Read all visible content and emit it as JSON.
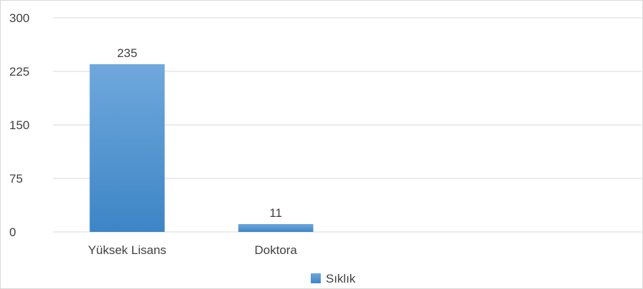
{
  "chart_data": {
    "type": "bar",
    "categories": [
      "Yüksek Lisans",
      "Doktora"
    ],
    "series": [
      {
        "name": "Sıklık",
        "values": [
          235,
          11
        ],
        "color": "#5b9bd5"
      }
    ],
    "data_labels": [
      "235",
      "11"
    ],
    "y_ticks": [
      0,
      75,
      150,
      225,
      300
    ],
    "y_tick_labels": [
      "0",
      "75",
      "150",
      "225",
      "300"
    ],
    "ylim": [
      0,
      300
    ],
    "grid": true,
    "legend_position": "bottom"
  }
}
